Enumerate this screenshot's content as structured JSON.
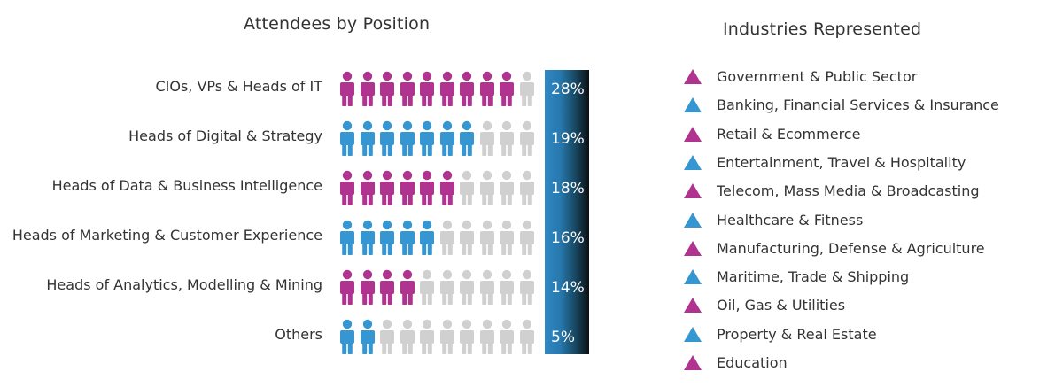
{
  "colors": {
    "magenta": "#b0338f",
    "blue": "#3596d2",
    "gray": "#d0d0d0"
  },
  "icon": "person-icon",
  "chart_data": [
    {
      "type": "pictograph",
      "title": "Attendees by Position",
      "icons_per_row": 10,
      "categories": [
        "CIOs, VPs & Heads of IT",
        "Heads of Digital & Strategy",
        "Heads of Data & Business Intelligence",
        "Heads of Marketing & Customer Experience",
        "Heads of Analytics, Modelling & Mining",
        "Others"
      ],
      "values": [
        28,
        19,
        18,
        16,
        14,
        5
      ],
      "value_labels": [
        "28%",
        "19%",
        "18%",
        "16%",
        "14%",
        "5%"
      ],
      "filled_icons": [
        9,
        7,
        6,
        5,
        4,
        2
      ],
      "row_colors": [
        "#b0338f",
        "#3596d2",
        "#b0338f",
        "#3596d2",
        "#b0338f",
        "#3596d2"
      ]
    },
    {
      "type": "legend_list",
      "title": "Industries Represented",
      "marker": "triangle-icon",
      "items": [
        {
          "label": "Government & Public Sector",
          "color": "#b0338f"
        },
        {
          "label": "Banking, Financial Services & Insurance",
          "color": "#3596d2"
        },
        {
          "label": "Retail & Ecommerce",
          "color": "#b0338f"
        },
        {
          "label": "Entertainment, Travel & Hospitality",
          "color": "#3596d2"
        },
        {
          "label": "Telecom, Mass Media & Broadcasting",
          "color": "#b0338f"
        },
        {
          "label": "Healthcare & Fitness",
          "color": "#3596d2"
        },
        {
          "label": "Manufacturing, Defense & Agriculture",
          "color": "#b0338f"
        },
        {
          "label": "Maritime, Trade & Shipping",
          "color": "#3596d2"
        },
        {
          "label": "Oil, Gas & Utilities",
          "color": "#b0338f"
        },
        {
          "label": "Property & Real Estate",
          "color": "#3596d2"
        },
        {
          "label": "Education",
          "color": "#b0338f"
        }
      ]
    }
  ]
}
